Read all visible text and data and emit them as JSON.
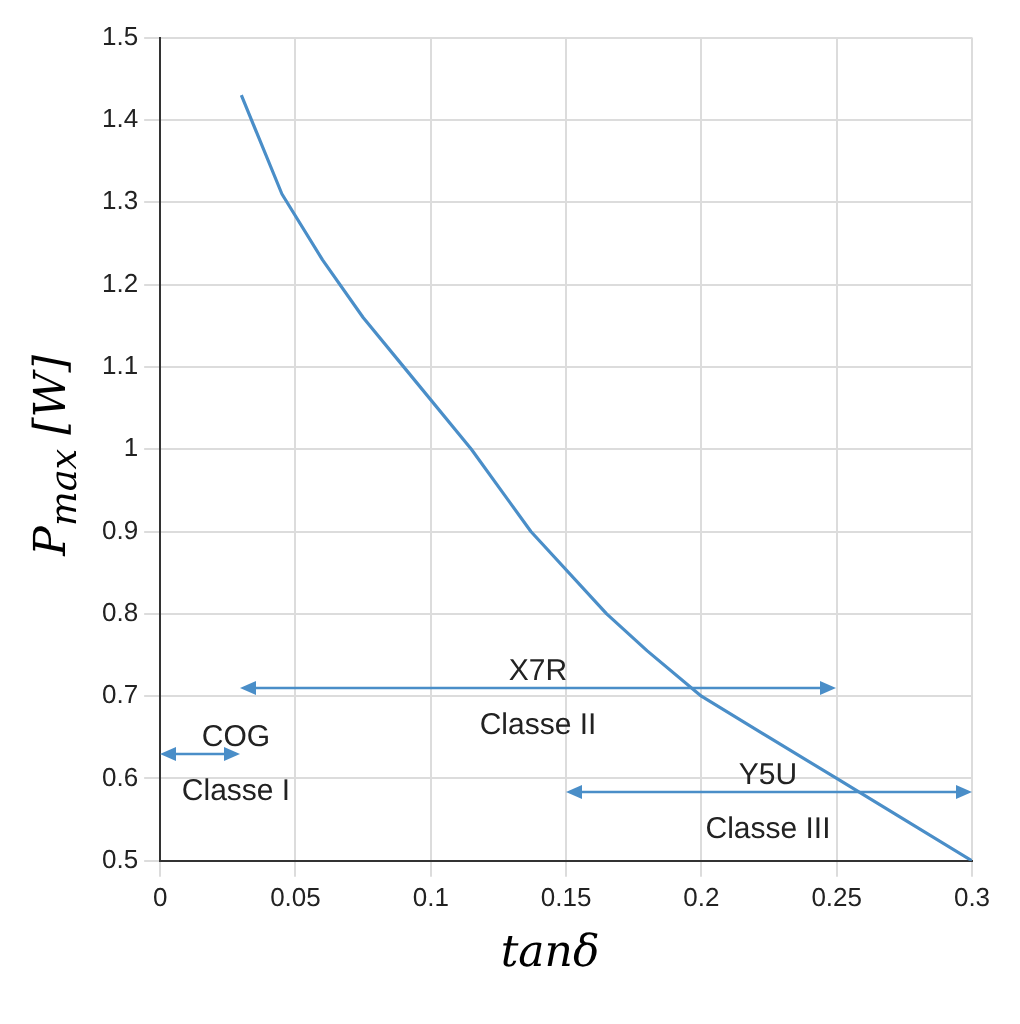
{
  "chart_data": {
    "type": "line",
    "xlabel": "tanδ",
    "ylabel": "P$_{max}$ [W]",
    "x": [
      0.03,
      0.045,
      0.06,
      0.075,
      0.09,
      0.115,
      0.137,
      0.165,
      0.18,
      0.2,
      0.225,
      0.25,
      0.275,
      0.3
    ],
    "series": [
      {
        "color": "#4a8ec8",
        "values": [
          1.43,
          1.31,
          1.23,
          1.16,
          1.1,
          1.0,
          0.9,
          0.8,
          0.755,
          0.7,
          0.65,
          0.6,
          0.55,
          0.5
        ]
      }
    ],
    "xlim": [
      0,
      0.3
    ],
    "xticks": [
      0,
      0.05,
      0.1,
      0.15,
      0.2,
      0.25,
      0.3
    ],
    "ylim": [
      0.5,
      1.5
    ],
    "yticks": [
      0.5,
      0.6,
      0.7,
      0.8,
      0.9,
      1,
      1.1,
      1.2,
      1.3,
      1.4,
      1.5
    ],
    "annotations": [
      "COG\nClasse I",
      "X7R\nClasse II",
      "Y5U\nClasse III"
    ],
    "grid": true,
    "legend": false,
    "marker": "none",
    "line_style": "solid"
  }
}
